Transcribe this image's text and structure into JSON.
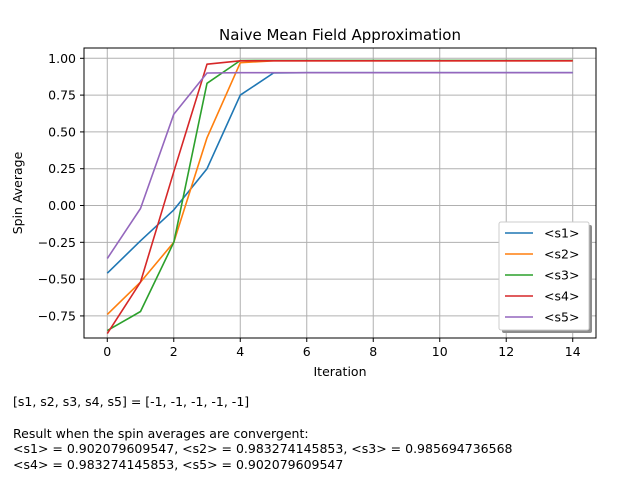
{
  "chart_data": {
    "type": "line",
    "title": "Naive Mean Field Approximation",
    "xlabel": "Iteration",
    "ylabel": "Spin Average",
    "xlim": [
      -0.7,
      14.7
    ],
    "ylim": [
      -0.9,
      1.07
    ],
    "xticks": [
      0,
      2,
      4,
      6,
      8,
      10,
      12,
      14
    ],
    "yticks": [
      -0.75,
      -0.5,
      -0.25,
      0.0,
      0.25,
      0.5,
      0.75,
      1.0
    ],
    "ytick_labels": [
      "−0.75",
      "−0.50",
      "−0.25",
      "0.00",
      "0.25",
      "0.50",
      "0.75",
      "1.00"
    ],
    "grid": true,
    "legend_position": "lower-right",
    "x": [
      0,
      1,
      2,
      3,
      4,
      5,
      6,
      7,
      8,
      9,
      10,
      11,
      12,
      13,
      14
    ],
    "series": [
      {
        "name": "<s1>",
        "color": "#1f77b4",
        "values": [
          -0.46,
          -0.24,
          -0.03,
          0.25,
          0.75,
          0.9,
          0.902,
          0.902,
          0.902,
          0.902,
          0.902,
          0.902,
          0.902,
          0.902,
          0.902
        ]
      },
      {
        "name": "<s2>",
        "color": "#ff7f0e",
        "values": [
          -0.74,
          -0.52,
          -0.25,
          0.46,
          0.97,
          0.983,
          0.983,
          0.983,
          0.983,
          0.983,
          0.983,
          0.983,
          0.983,
          0.983,
          0.983
        ]
      },
      {
        "name": "<s3>",
        "color": "#2ca02c",
        "values": [
          -0.85,
          -0.72,
          -0.25,
          0.83,
          0.985,
          0.986,
          0.986,
          0.986,
          0.986,
          0.986,
          0.986,
          0.986,
          0.986,
          0.986,
          0.986
        ]
      },
      {
        "name": "<s4>",
        "color": "#d62728",
        "values": [
          -0.87,
          -0.52,
          0.23,
          0.96,
          0.983,
          0.983,
          0.983,
          0.983,
          0.983,
          0.983,
          0.983,
          0.983,
          0.983,
          0.983,
          0.983
        ]
      },
      {
        "name": "<s5>",
        "color": "#9467bd",
        "values": [
          -0.36,
          -0.02,
          0.62,
          0.9,
          0.902,
          0.902,
          0.902,
          0.902,
          0.902,
          0.902,
          0.902,
          0.902,
          0.902,
          0.902,
          0.902
        ]
      }
    ]
  },
  "caption": {
    "initial_state": "[s1, s2, s3, s4, s5] = [-1, -1, -1, -1, -1]",
    "result_heading": "Result when the spin averages are convergent:",
    "result_line1": "<s1> = 0.902079609547, <s2> = 0.983274145853, <s3> = 0.985694736568",
    "result_line2": "<s4> = 0.983274145853, <s5> = 0.902079609547"
  }
}
